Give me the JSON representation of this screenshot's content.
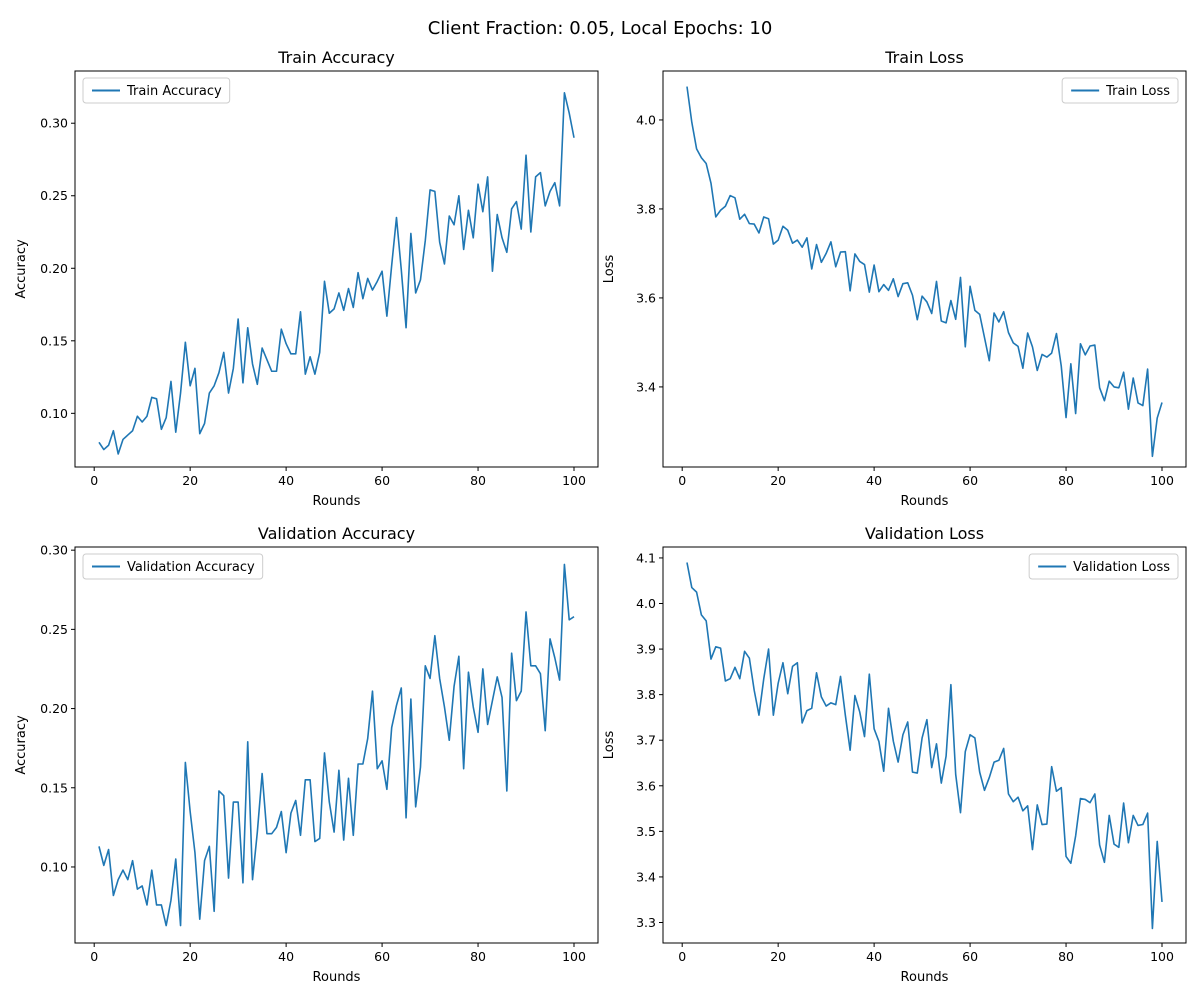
{
  "figure": {
    "suptitle": "Client Fraction: 0.05, Local Epochs: 10"
  },
  "chart_data": [
    {
      "type": "line",
      "title": "Train Accuracy",
      "xlabel": "Rounds",
      "ylabel": "Accuracy",
      "xlim": [
        -4,
        105
      ],
      "ylim": [
        0.063,
        0.336
      ],
      "xticks": [
        0,
        20,
        40,
        60,
        80,
        100
      ],
      "yticks": [
        0.1,
        0.15,
        0.2,
        0.25,
        0.3
      ],
      "ytick_labels": [
        "0.10",
        "0.15",
        "0.20",
        "0.25",
        "0.30"
      ],
      "legend_position": "upper-left",
      "grid": false,
      "color": "#1f77b4",
      "series": [
        {
          "name": "Train Accuracy",
          "x": [
            1,
            2,
            3,
            4,
            5,
            6,
            7,
            8,
            9,
            10,
            11,
            12,
            13,
            14,
            15,
            16,
            17,
            18,
            19,
            20,
            21,
            22,
            23,
            24,
            25,
            26,
            27,
            28,
            29,
            30,
            31,
            32,
            33,
            34,
            35,
            36,
            37,
            38,
            39,
            40,
            41,
            42,
            43,
            44,
            45,
            46,
            47,
            48,
            49,
            50,
            51,
            52,
            53,
            54,
            55,
            56,
            57,
            58,
            59,
            60,
            61,
            62,
            63,
            64,
            65,
            66,
            67,
            68,
            69,
            70,
            71,
            72,
            73,
            74,
            75,
            76,
            77,
            78,
            79,
            80,
            81,
            82,
            83,
            84,
            85,
            86,
            87,
            88,
            89,
            90,
            91,
            92,
            93,
            94,
            95,
            96,
            97,
            98,
            99,
            100
          ],
          "values": [
            0.08,
            0.075,
            0.078,
            0.088,
            0.072,
            0.082,
            0.085,
            0.088,
            0.098,
            0.094,
            0.098,
            0.111,
            0.11,
            0.089,
            0.097,
            0.122,
            0.087,
            0.114,
            0.149,
            0.119,
            0.131,
            0.086,
            0.093,
            0.114,
            0.119,
            0.128,
            0.142,
            0.114,
            0.131,
            0.165,
            0.121,
            0.159,
            0.134,
            0.12,
            0.145,
            0.137,
            0.129,
            0.129,
            0.158,
            0.148,
            0.141,
            0.141,
            0.17,
            0.127,
            0.139,
            0.127,
            0.142,
            0.191,
            0.169,
            0.172,
            0.183,
            0.171,
            0.186,
            0.173,
            0.197,
            0.179,
            0.193,
            0.185,
            0.191,
            0.198,
            0.167,
            0.202,
            0.235,
            0.199,
            0.159,
            0.224,
            0.183,
            0.192,
            0.219,
            0.254,
            0.253,
            0.218,
            0.203,
            0.236,
            0.23,
            0.25,
            0.213,
            0.24,
            0.221,
            0.258,
            0.239,
            0.263,
            0.198,
            0.237,
            0.221,
            0.211,
            0.241,
            0.246,
            0.227,
            0.278,
            0.225,
            0.263,
            0.266,
            0.243,
            0.253,
            0.259,
            0.243,
            0.321,
            0.307,
            0.29
          ]
        }
      ]
    },
    {
      "type": "line",
      "title": "Train Loss",
      "xlabel": "Rounds",
      "ylabel": "Loss",
      "xlim": [
        -4,
        105
      ],
      "ylim": [
        3.22,
        4.11
      ],
      "xticks": [
        0,
        20,
        40,
        60,
        80,
        100
      ],
      "yticks": [
        3.4,
        3.6,
        3.8,
        4.0
      ],
      "ytick_labels": [
        "3.4",
        "3.6",
        "3.8",
        "4.0"
      ],
      "legend_position": "upper-right",
      "grid": false,
      "color": "#1f77b4",
      "series": [
        {
          "name": "Train Loss",
          "x": [
            1,
            2,
            3,
            4,
            5,
            6,
            7,
            8,
            9,
            10,
            11,
            12,
            13,
            14,
            15,
            16,
            17,
            18,
            19,
            20,
            21,
            22,
            23,
            24,
            25,
            26,
            27,
            28,
            29,
            30,
            31,
            32,
            33,
            34,
            35,
            36,
            37,
            38,
            39,
            40,
            41,
            42,
            43,
            44,
            45,
            46,
            47,
            48,
            49,
            50,
            51,
            52,
            53,
            54,
            55,
            56,
            57,
            58,
            59,
            60,
            61,
            62,
            63,
            64,
            65,
            66,
            67,
            68,
            69,
            70,
            71,
            72,
            73,
            74,
            75,
            76,
            77,
            78,
            79,
            80,
            81,
            82,
            83,
            84,
            85,
            86,
            87,
            88,
            89,
            90,
            91,
            92,
            93,
            94,
            95,
            96,
            97,
            98,
            99,
            100
          ],
          "values": [
            4.075,
            3.995,
            3.935,
            3.915,
            3.902,
            3.858,
            3.782,
            3.797,
            3.806,
            3.83,
            3.825,
            3.777,
            3.788,
            3.767,
            3.766,
            3.746,
            3.782,
            3.778,
            3.721,
            3.73,
            3.761,
            3.752,
            3.723,
            3.73,
            3.714,
            3.735,
            3.665,
            3.72,
            3.68,
            3.7,
            3.726,
            3.67,
            3.703,
            3.704,
            3.616,
            3.699,
            3.682,
            3.675,
            3.613,
            3.674,
            3.614,
            3.63,
            3.617,
            3.643,
            3.603,
            3.632,
            3.634,
            3.606,
            3.551,
            3.604,
            3.591,
            3.565,
            3.637,
            3.548,
            3.544,
            3.594,
            3.552,
            3.646,
            3.49,
            3.626,
            3.572,
            3.563,
            3.511,
            3.459,
            3.566,
            3.546,
            3.569,
            3.522,
            3.499,
            3.491,
            3.442,
            3.521,
            3.49,
            3.437,
            3.473,
            3.467,
            3.476,
            3.52,
            3.447,
            3.331,
            3.452,
            3.34,
            3.497,
            3.472,
            3.492,
            3.494,
            3.398,
            3.369,
            3.413,
            3.4,
            3.398,
            3.433,
            3.35,
            3.42,
            3.364,
            3.358,
            3.44,
            3.244,
            3.33,
            3.365
          ]
        }
      ]
    },
    {
      "type": "line",
      "title": "Validation Accuracy",
      "xlabel": "Rounds",
      "ylabel": "Accuracy",
      "xlim": [
        -4,
        105
      ],
      "ylim": [
        0.052,
        0.302
      ],
      "xticks": [
        0,
        20,
        40,
        60,
        80,
        100
      ],
      "yticks": [
        0.1,
        0.15,
        0.2,
        0.25,
        0.3
      ],
      "ytick_labels": [
        "0.10",
        "0.15",
        "0.20",
        "0.25",
        "0.30"
      ],
      "legend_position": "upper-left",
      "grid": false,
      "color": "#1f77b4",
      "series": [
        {
          "name": "Validation Accuracy",
          "x": [
            1,
            2,
            3,
            4,
            5,
            6,
            7,
            8,
            9,
            10,
            11,
            12,
            13,
            14,
            15,
            16,
            17,
            18,
            19,
            20,
            21,
            22,
            23,
            24,
            25,
            26,
            27,
            28,
            29,
            30,
            31,
            32,
            33,
            34,
            35,
            36,
            37,
            38,
            39,
            40,
            41,
            42,
            43,
            44,
            45,
            46,
            47,
            48,
            49,
            50,
            51,
            52,
            53,
            54,
            55,
            56,
            57,
            58,
            59,
            60,
            61,
            62,
            63,
            64,
            65,
            66,
            67,
            68,
            69,
            70,
            71,
            72,
            73,
            74,
            75,
            76,
            77,
            78,
            79,
            80,
            81,
            82,
            83,
            84,
            85,
            86,
            87,
            88,
            89,
            90,
            91,
            92,
            93,
            94,
            95,
            96,
            97,
            98,
            99,
            100
          ],
          "values": [
            0.113,
            0.101,
            0.111,
            0.082,
            0.092,
            0.098,
            0.092,
            0.104,
            0.086,
            0.088,
            0.076,
            0.098,
            0.076,
            0.076,
            0.063,
            0.079,
            0.105,
            0.063,
            0.166,
            0.135,
            0.109,
            0.067,
            0.104,
            0.113,
            0.072,
            0.148,
            0.145,
            0.093,
            0.141,
            0.141,
            0.09,
            0.179,
            0.092,
            0.122,
            0.159,
            0.121,
            0.121,
            0.125,
            0.135,
            0.109,
            0.134,
            0.142,
            0.12,
            0.155,
            0.155,
            0.116,
            0.118,
            0.172,
            0.141,
            0.122,
            0.161,
            0.117,
            0.156,
            0.12,
            0.165,
            0.165,
            0.181,
            0.211,
            0.162,
            0.167,
            0.149,
            0.188,
            0.202,
            0.213,
            0.131,
            0.206,
            0.138,
            0.163,
            0.227,
            0.219,
            0.246,
            0.219,
            0.201,
            0.18,
            0.214,
            0.233,
            0.162,
            0.223,
            0.201,
            0.185,
            0.225,
            0.19,
            0.205,
            0.22,
            0.207,
            0.148,
            0.235,
            0.205,
            0.211,
            0.261,
            0.227,
            0.227,
            0.222,
            0.186,
            0.244,
            0.232,
            0.218,
            0.291,
            0.256,
            0.258
          ]
        }
      ]
    },
    {
      "type": "line",
      "title": "Validation Loss",
      "xlabel": "Rounds",
      "ylabel": "Loss",
      "xlim": [
        -4,
        105
      ],
      "ylim": [
        3.255,
        4.124
      ],
      "xticks": [
        0,
        20,
        40,
        60,
        80,
        100
      ],
      "yticks": [
        3.3,
        3.4,
        3.5,
        3.6,
        3.7,
        3.8,
        3.9,
        4.0,
        4.1
      ],
      "ytick_labels": [
        "3.3",
        "3.4",
        "3.5",
        "3.6",
        "3.7",
        "3.8",
        "3.9",
        "4.0",
        "4.1"
      ],
      "legend_position": "upper-right",
      "grid": false,
      "color": "#1f77b4",
      "series": [
        {
          "name": "Validation Loss",
          "x": [
            1,
            2,
            3,
            4,
            5,
            6,
            7,
            8,
            9,
            10,
            11,
            12,
            13,
            14,
            15,
            16,
            17,
            18,
            19,
            20,
            21,
            22,
            23,
            24,
            25,
            26,
            27,
            28,
            29,
            30,
            31,
            32,
            33,
            34,
            35,
            36,
            37,
            38,
            39,
            40,
            41,
            42,
            43,
            44,
            45,
            46,
            47,
            48,
            49,
            50,
            51,
            52,
            53,
            54,
            55,
            56,
            57,
            58,
            59,
            60,
            61,
            62,
            63,
            64,
            65,
            66,
            67,
            68,
            69,
            70,
            71,
            72,
            73,
            74,
            75,
            76,
            77,
            78,
            79,
            80,
            81,
            82,
            83,
            84,
            85,
            86,
            87,
            88,
            89,
            90,
            91,
            92,
            93,
            94,
            95,
            96,
            97,
            98,
            99,
            100
          ],
          "values": [
            4.09,
            4.035,
            4.025,
            3.975,
            3.962,
            3.878,
            3.905,
            3.902,
            3.83,
            3.835,
            3.86,
            3.835,
            3.895,
            3.88,
            3.81,
            3.755,
            3.835,
            3.9,
            3.755,
            3.825,
            3.87,
            3.802,
            3.862,
            3.87,
            3.738,
            3.765,
            3.77,
            3.848,
            3.795,
            3.775,
            3.782,
            3.778,
            3.84,
            3.755,
            3.678,
            3.798,
            3.762,
            3.708,
            3.845,
            3.725,
            3.697,
            3.632,
            3.77,
            3.698,
            3.652,
            3.712,
            3.74,
            3.63,
            3.628,
            3.705,
            3.745,
            3.64,
            3.692,
            3.606,
            3.665,
            3.822,
            3.625,
            3.541,
            3.675,
            3.712,
            3.705,
            3.63,
            3.59,
            3.618,
            3.652,
            3.656,
            3.682,
            3.582,
            3.565,
            3.575,
            3.545,
            3.556,
            3.46,
            3.558,
            3.515,
            3.516,
            3.642,
            3.588,
            3.596,
            3.445,
            3.43,
            3.49,
            3.572,
            3.57,
            3.563,
            3.582,
            3.47,
            3.432,
            3.535,
            3.472,
            3.465,
            3.562,
            3.475,
            3.535,
            3.513,
            3.515,
            3.54,
            3.287,
            3.478,
            3.345
          ]
        }
      ]
    }
  ]
}
